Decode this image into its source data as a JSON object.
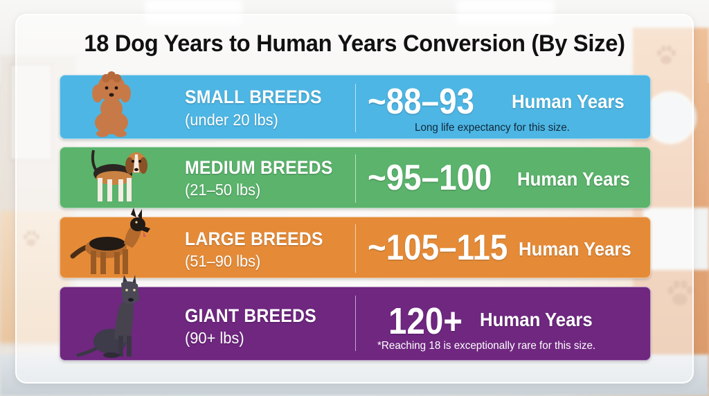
{
  "title": "18 Dog Years to Human Years Conversion (By Size)",
  "colors": {
    "small": "#4db6e4",
    "medium": "#5bb36c",
    "large": "#e58b38",
    "giant": "#6f2780"
  },
  "rows": [
    {
      "breed": "SMALL BREEDS",
      "weight": "(under 20 lbs)",
      "years": "~88–93",
      "unit": "Human Years",
      "note": "Long life expectancy for this size.",
      "icon": "poodle-icon"
    },
    {
      "breed": "MEDIUM BREEDS",
      "weight": "(21–50 lbs)",
      "years": "~95–100",
      "unit": "Human Years",
      "note": "",
      "icon": "beagle-icon"
    },
    {
      "breed": "LARGE BREEDS",
      "weight": "(51–90 lbs)",
      "years": "~105–115",
      "unit": "Human Years",
      "note": "",
      "icon": "german-shepherd-icon"
    },
    {
      "breed": "GIANT BREEDS",
      "weight": "(90+ lbs)",
      "years": "120+",
      "unit": "Human Years",
      "note": "*Reaching 18 is exceptionally rare for this size.",
      "icon": "great-dane-icon"
    }
  ]
}
